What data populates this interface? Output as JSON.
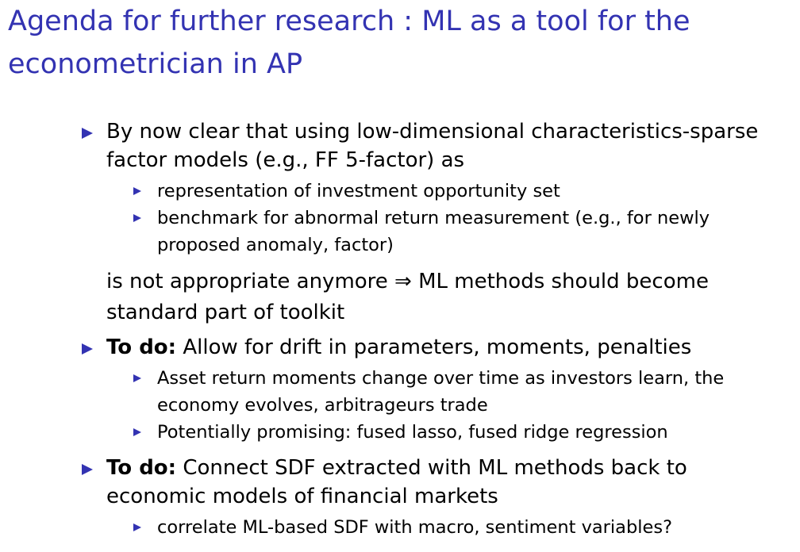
{
  "slide": {
    "title": "Agenda for further research : ML as a tool for the econometrician in AP",
    "accent_color": "#3333b2",
    "bullet_icon": "triangle-bullet-icon",
    "items": [
      {
        "text": "By now clear that using low-dimensional characteristics-sparse factor models (e.g., FF 5-factor) as",
        "subitems": [
          "representation of investment opportunity set",
          "benchmark for abnormal return measurement (e.g., for newly proposed anomaly, factor)"
        ],
        "continuation": "is not appropriate anymore ⇒ ML methods should become standard part of toolkit"
      },
      {
        "bold": "To do:",
        "text": " Allow for drift in parameters, moments, penalties",
        "subitems": [
          "Asset return moments change over time as investors learn, the economy evolves, arbitrageurs trade",
          "Potentially promising: fused lasso, fused ridge regression"
        ]
      },
      {
        "bold": "To do:",
        "text": " Connect SDF extracted with ML methods back to economic models of financial markets",
        "subitems": [
          "correlate ML-based SDF with macro, sentiment variables?"
        ]
      }
    ]
  }
}
